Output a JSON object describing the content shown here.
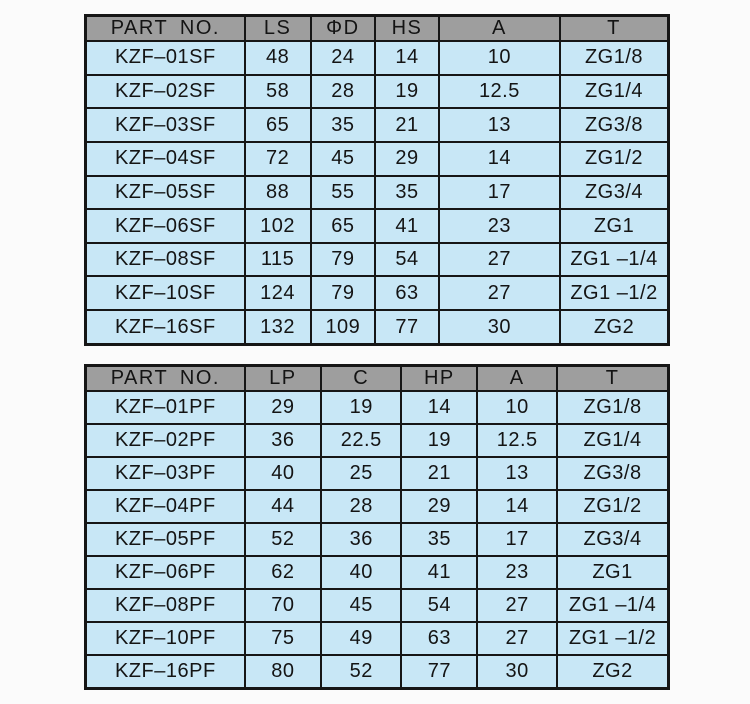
{
  "colors": {
    "page_background": "#fbfbfb",
    "header_background": "#9e9e9e",
    "row_background": "#c8e7f6",
    "border": "#161616",
    "text": "#141414"
  },
  "tables": [
    {
      "name": "sf-series-spec-table",
      "columns": [
        "PART NO.",
        "LS",
        "ΦD",
        "HS",
        "A",
        "T"
      ],
      "rows": [
        [
          "KZF–01SF",
          "48",
          "24",
          "14",
          "10",
          "ZG1/8"
        ],
        [
          "KZF–02SF",
          "58",
          "28",
          "19",
          "12.5",
          "ZG1/4"
        ],
        [
          "KZF–03SF",
          "65",
          "35",
          "21",
          "13",
          "ZG3/8"
        ],
        [
          "KZF–04SF",
          "72",
          "45",
          "29",
          "14",
          "ZG1/2"
        ],
        [
          "KZF–05SF",
          "88",
          "55",
          "35",
          "17",
          "ZG3/4"
        ],
        [
          "KZF–06SF",
          "102",
          "65",
          "41",
          "23",
          "ZG1"
        ],
        [
          "KZF–08SF",
          "115",
          "79",
          "54",
          "27",
          "ZG1 –1/4"
        ],
        [
          "KZF–10SF",
          "124",
          "79",
          "63",
          "27",
          "ZG1 –1/2"
        ],
        [
          "KZF–16SF",
          "132",
          "109",
          "77",
          "30",
          "ZG2"
        ]
      ]
    },
    {
      "name": "pf-series-spec-table",
      "columns": [
        "PART NO.",
        "LP",
        "C",
        "HP",
        "A",
        "T"
      ],
      "rows": [
        [
          "KZF–01PF",
          "29",
          "19",
          "14",
          "10",
          "ZG1/8"
        ],
        [
          "KZF–02PF",
          "36",
          "22.5",
          "19",
          "12.5",
          "ZG1/4"
        ],
        [
          "KZF–03PF",
          "40",
          "25",
          "21",
          "13",
          "ZG3/8"
        ],
        [
          "KZF–04PF",
          "44",
          "28",
          "29",
          "14",
          "ZG1/2"
        ],
        [
          "KZF–05PF",
          "52",
          "36",
          "35",
          "17",
          "ZG3/4"
        ],
        [
          "KZF–06PF",
          "62",
          "40",
          "41",
          "23",
          "ZG1"
        ],
        [
          "KZF–08PF",
          "70",
          "45",
          "54",
          "27",
          "ZG1 –1/4"
        ],
        [
          "KZF–10PF",
          "75",
          "49",
          "63",
          "27",
          "ZG1 –1/2"
        ],
        [
          "KZF–16PF",
          "80",
          "52",
          "77",
          "30",
          "ZG2"
        ]
      ]
    }
  ]
}
